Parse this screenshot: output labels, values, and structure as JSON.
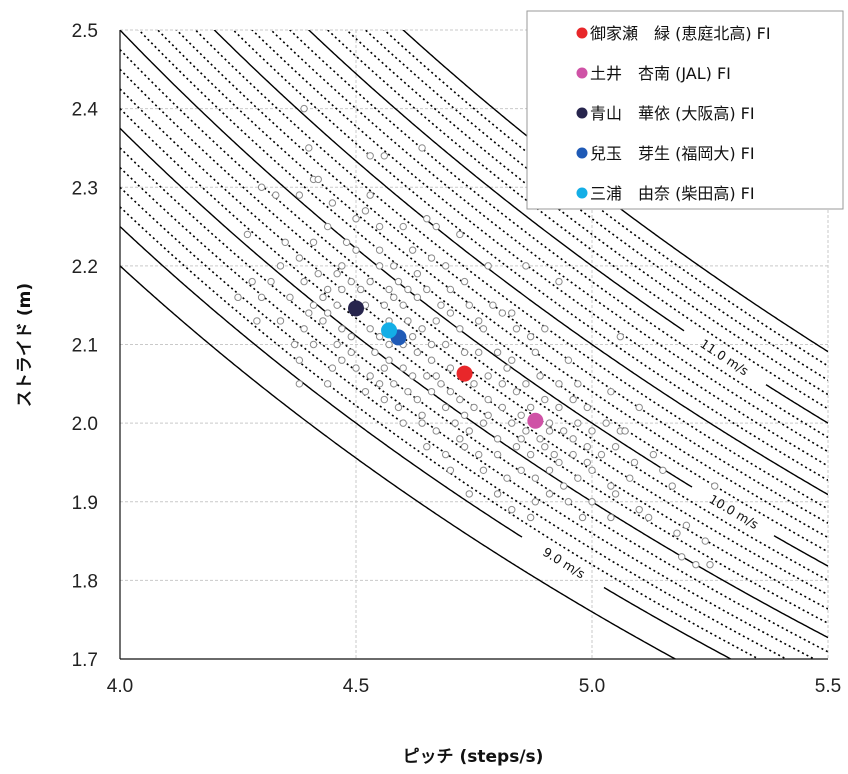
{
  "chart_data": {
    "type": "scatter",
    "xlabel": "ピッチ (steps/s)",
    "ylabel": "ストライド (m)",
    "xlim": [
      4.0,
      5.5
    ],
    "ylim": [
      1.7,
      2.5
    ],
    "xticks": [
      4.0,
      4.5,
      5.0,
      5.5
    ],
    "xtick_labels": [
      "4.0",
      "4.5",
      "5.0",
      "5.5"
    ],
    "yticks": [
      1.7,
      1.8,
      1.9,
      2.0,
      2.1,
      2.2,
      2.3,
      2.4,
      2.5
    ],
    "ytick_labels": [
      "1.7",
      "1.8",
      "1.9",
      "2.0",
      "2.1",
      "2.2",
      "2.3",
      "2.4",
      "2.5"
    ],
    "grid": true,
    "legend_position": "top-right",
    "iso_speed_curves": {
      "solid": [
        8.8,
        9.0,
        9.5,
        10.0,
        10.5,
        11.0,
        11.5
      ],
      "dotted": [
        9.1,
        9.2,
        9.3,
        9.4,
        9.6,
        9.7,
        9.8,
        9.9,
        10.1,
        10.2,
        10.3,
        10.4,
        10.6,
        10.7,
        10.8,
        10.9,
        11.1,
        11.2,
        11.3,
        11.4
      ],
      "labels": [
        {
          "speed": 9.0,
          "text": "9.0 m/s",
          "x": 4.94
        },
        {
          "speed": 10.0,
          "text": "10.0 m/s",
          "x": 5.3
        },
        {
          "speed": 11.0,
          "text": "11.0 m/s",
          "x": 5.28
        }
      ]
    },
    "highlight_series": [
      {
        "name": "御家瀬　緑 (恵庭北高) FI",
        "color": "#e8272a",
        "x": 4.73,
        "y": 2.063
      },
      {
        "name": "土井　杏南 (JAL) FI",
        "color": "#cf52a6",
        "x": 4.88,
        "y": 2.003
      },
      {
        "name": "青山　華依 (大阪高) FI",
        "color": "#27254d",
        "x": 4.5,
        "y": 2.146
      },
      {
        "name": "兒玉　芽生 (福岡大) FI",
        "color": "#1f5ab6",
        "x": 4.59,
        "y": 2.109
      },
      {
        "name": "三浦　由奈 (柴田高) FI",
        "color": "#14aee6",
        "x": 4.57,
        "y": 2.118
      }
    ],
    "background_points": [
      [
        4.39,
        2.4
      ],
      [
        4.4,
        2.35
      ],
      [
        4.64,
        2.35
      ],
      [
        4.53,
        2.34
      ],
      [
        4.56,
        2.34
      ],
      [
        4.3,
        2.3
      ],
      [
        4.41,
        2.31
      ],
      [
        4.42,
        2.31
      ],
      [
        4.33,
        2.29
      ],
      [
        4.38,
        2.29
      ],
      [
        4.53,
        2.29
      ],
      [
        4.45,
        2.28
      ],
      [
        4.5,
        2.26
      ],
      [
        4.52,
        2.27
      ],
      [
        4.65,
        2.26
      ],
      [
        4.27,
        2.24
      ],
      [
        4.35,
        2.23
      ],
      [
        4.41,
        2.23
      ],
      [
        4.44,
        2.25
      ],
      [
        4.55,
        2.25
      ],
      [
        4.6,
        2.25
      ],
      [
        4.67,
        2.25
      ],
      [
        4.72,
        2.24
      ],
      [
        4.48,
        2.23
      ],
      [
        4.5,
        2.22
      ],
      [
        4.55,
        2.22
      ],
      [
        4.62,
        2.22
      ],
      [
        4.34,
        2.2
      ],
      [
        4.38,
        2.21
      ],
      [
        4.42,
        2.19
      ],
      [
        4.47,
        2.2
      ],
      [
        4.55,
        2.2
      ],
      [
        4.58,
        2.2
      ],
      [
        4.63,
        2.19
      ],
      [
        4.66,
        2.21
      ],
      [
        4.69,
        2.2
      ],
      [
        4.78,
        2.2
      ],
      [
        4.86,
        2.2
      ],
      [
        4.93,
        2.18
      ],
      [
        4.28,
        2.18
      ],
      [
        4.32,
        2.18
      ],
      [
        4.39,
        2.18
      ],
      [
        4.44,
        2.17
      ],
      [
        4.49,
        2.18
      ],
      [
        4.53,
        2.18
      ],
      [
        4.57,
        2.17
      ],
      [
        4.61,
        2.17
      ],
      [
        4.65,
        2.17
      ],
      [
        4.7,
        2.17
      ],
      [
        4.73,
        2.18
      ],
      [
        4.25,
        2.16
      ],
      [
        4.3,
        2.16
      ],
      [
        4.36,
        2.16
      ],
      [
        4.41,
        2.15
      ],
      [
        4.46,
        2.15
      ],
      [
        4.52,
        2.15
      ],
      [
        4.56,
        2.15
      ],
      [
        4.6,
        2.15
      ],
      [
        4.63,
        2.16
      ],
      [
        4.68,
        2.15
      ],
      [
        4.74,
        2.15
      ],
      [
        4.79,
        2.15
      ],
      [
        4.81,
        2.14
      ],
      [
        4.29,
        2.13
      ],
      [
        4.34,
        2.13
      ],
      [
        4.39,
        2.12
      ],
      [
        4.43,
        2.13
      ],
      [
        4.47,
        2.12
      ],
      [
        4.53,
        2.12
      ],
      [
        4.55,
        2.11
      ],
      [
        4.61,
        2.13
      ],
      [
        4.64,
        2.12
      ],
      [
        4.67,
        2.13
      ],
      [
        4.72,
        2.12
      ],
      [
        4.77,
        2.12
      ],
      [
        4.84,
        2.12
      ],
      [
        4.9,
        2.12
      ],
      [
        4.37,
        2.1
      ],
      [
        4.41,
        2.1
      ],
      [
        4.46,
        2.1
      ],
      [
        4.49,
        2.09
      ],
      [
        4.54,
        2.09
      ],
      [
        4.57,
        2.1
      ],
      [
        4.6,
        2.1
      ],
      [
        4.63,
        2.09
      ],
      [
        4.66,
        2.1
      ],
      [
        4.69,
        2.1
      ],
      [
        4.73,
        2.09
      ],
      [
        4.76,
        2.09
      ],
      [
        4.8,
        2.09
      ],
      [
        4.83,
        2.08
      ],
      [
        4.88,
        2.09
      ],
      [
        4.38,
        2.08
      ],
      [
        4.45,
        2.07
      ],
      [
        4.5,
        2.07
      ],
      [
        4.53,
        2.06
      ],
      [
        4.56,
        2.07
      ],
      [
        4.58,
        2.05
      ],
      [
        4.62,
        2.06
      ],
      [
        4.65,
        2.06
      ],
      [
        4.68,
        2.05
      ],
      [
        4.7,
        2.07
      ],
      [
        4.75,
        2.05
      ],
      [
        4.78,
        2.06
      ],
      [
        4.82,
        2.07
      ],
      [
        4.86,
        2.05
      ],
      [
        4.89,
        2.06
      ],
      [
        4.93,
        2.05
      ],
      [
        4.38,
        2.05
      ],
      [
        4.44,
        2.05
      ],
      [
        4.52,
        2.04
      ],
      [
        4.56,
        2.03
      ],
      [
        4.59,
        2.02
      ],
      [
        4.63,
        2.03
      ],
      [
        4.66,
        2.04
      ],
      [
        4.69,
        2.02
      ],
      [
        4.72,
        2.03
      ],
      [
        4.75,
        2.02
      ],
      [
        4.78,
        2.03
      ],
      [
        4.81,
        2.02
      ],
      [
        4.84,
        2.04
      ],
      [
        4.87,
        2.02
      ],
      [
        4.9,
        2.03
      ],
      [
        4.93,
        2.02
      ],
      [
        4.96,
        2.03
      ],
      [
        4.99,
        2.02
      ],
      [
        4.6,
        2.0
      ],
      [
        4.64,
        2.0
      ],
      [
        4.67,
        1.99
      ],
      [
        4.71,
        2.0
      ],
      [
        4.74,
        1.99
      ],
      [
        4.77,
        2.0
      ],
      [
        4.8,
        1.98
      ],
      [
        4.83,
        2.0
      ],
      [
        4.86,
        1.99
      ],
      [
        4.89,
        1.98
      ],
      [
        4.91,
        2.0
      ],
      [
        4.94,
        1.99
      ],
      [
        4.97,
        2.0
      ],
      [
        5.0,
        1.99
      ],
      [
        5.03,
        2.0
      ],
      [
        5.06,
        1.99
      ],
      [
        4.65,
        1.97
      ],
      [
        4.69,
        1.96
      ],
      [
        4.73,
        1.97
      ],
      [
        4.76,
        1.96
      ],
      [
        4.8,
        1.96
      ],
      [
        4.84,
        1.97
      ],
      [
        4.87,
        1.96
      ],
      [
        4.9,
        1.97
      ],
      [
        4.93,
        1.95
      ],
      [
        4.96,
        1.96
      ],
      [
        4.99,
        1.95
      ],
      [
        5.02,
        1.96
      ],
      [
        5.05,
        1.97
      ],
      [
        5.09,
        1.95
      ],
      [
        5.13,
        1.96
      ],
      [
        4.7,
        1.94
      ],
      [
        4.77,
        1.94
      ],
      [
        4.82,
        1.93
      ],
      [
        4.85,
        1.94
      ],
      [
        4.88,
        1.93
      ],
      [
        4.91,
        1.94
      ],
      [
        4.94,
        1.92
      ],
      [
        4.97,
        1.93
      ],
      [
        5.0,
        1.94
      ],
      [
        5.04,
        1.92
      ],
      [
        5.08,
        1.93
      ],
      [
        5.15,
        1.94
      ],
      [
        4.74,
        1.91
      ],
      [
        4.8,
        1.91
      ],
      [
        4.88,
        1.9
      ],
      [
        4.91,
        1.91
      ],
      [
        4.95,
        1.9
      ],
      [
        5.0,
        1.9
      ],
      [
        5.05,
        1.91
      ],
      [
        5.1,
        1.89
      ],
      [
        5.17,
        1.92
      ],
      [
        5.26,
        1.92
      ],
      [
        4.83,
        1.89
      ],
      [
        4.87,
        1.88
      ],
      [
        4.98,
        1.88
      ],
      [
        5.04,
        1.88
      ],
      [
        5.12,
        1.88
      ],
      [
        5.18,
        1.86
      ],
      [
        5.2,
        1.87
      ],
      [
        5.24,
        1.85
      ],
      [
        5.19,
        1.83
      ],
      [
        5.22,
        1.82
      ],
      [
        5.25,
        1.82
      ],
      [
        5.07,
        1.99
      ],
      [
        5.1,
        2.02
      ],
      [
        5.04,
        2.04
      ],
      [
        5.06,
        2.11
      ],
      [
        4.97,
        2.05
      ],
      [
        4.95,
        2.08
      ],
      [
        4.87,
        2.11
      ],
      [
        4.83,
        2.14
      ],
      [
        4.76,
        2.13
      ],
      [
        4.7,
        2.14
      ],
      [
        4.58,
        2.16
      ],
      [
        4.51,
        2.17
      ],
      [
        4.47,
        2.17
      ],
      [
        4.43,
        2.16
      ],
      [
        4.46,
        2.19
      ],
      [
        4.59,
        2.18
      ],
      [
        4.57,
        2.13
      ],
      [
        4.62,
        2.11
      ],
      [
        4.66,
        2.08
      ],
      [
        4.7,
        2.04
      ],
      [
        4.73,
        2.01
      ],
      [
        4.78,
        2.01
      ],
      [
        4.85,
        1.98
      ],
      [
        4.92,
        1.96
      ],
      [
        4.99,
        1.97
      ],
      [
        4.57,
        2.08
      ],
      [
        4.6,
        2.07
      ],
      [
        4.49,
        2.11
      ],
      [
        4.44,
        2.14
      ],
      [
        4.4,
        2.14
      ],
      [
        4.67,
        2.06
      ],
      [
        4.81,
        2.05
      ],
      [
        4.85,
        2.01
      ],
      [
        4.91,
        1.99
      ],
      [
        4.96,
        1.98
      ],
      [
        4.72,
        1.98
      ],
      [
        4.64,
        2.01
      ],
      [
        4.61,
        2.04
      ],
      [
        4.55,
        2.05
      ],
      [
        4.47,
        2.08
      ]
    ]
  }
}
